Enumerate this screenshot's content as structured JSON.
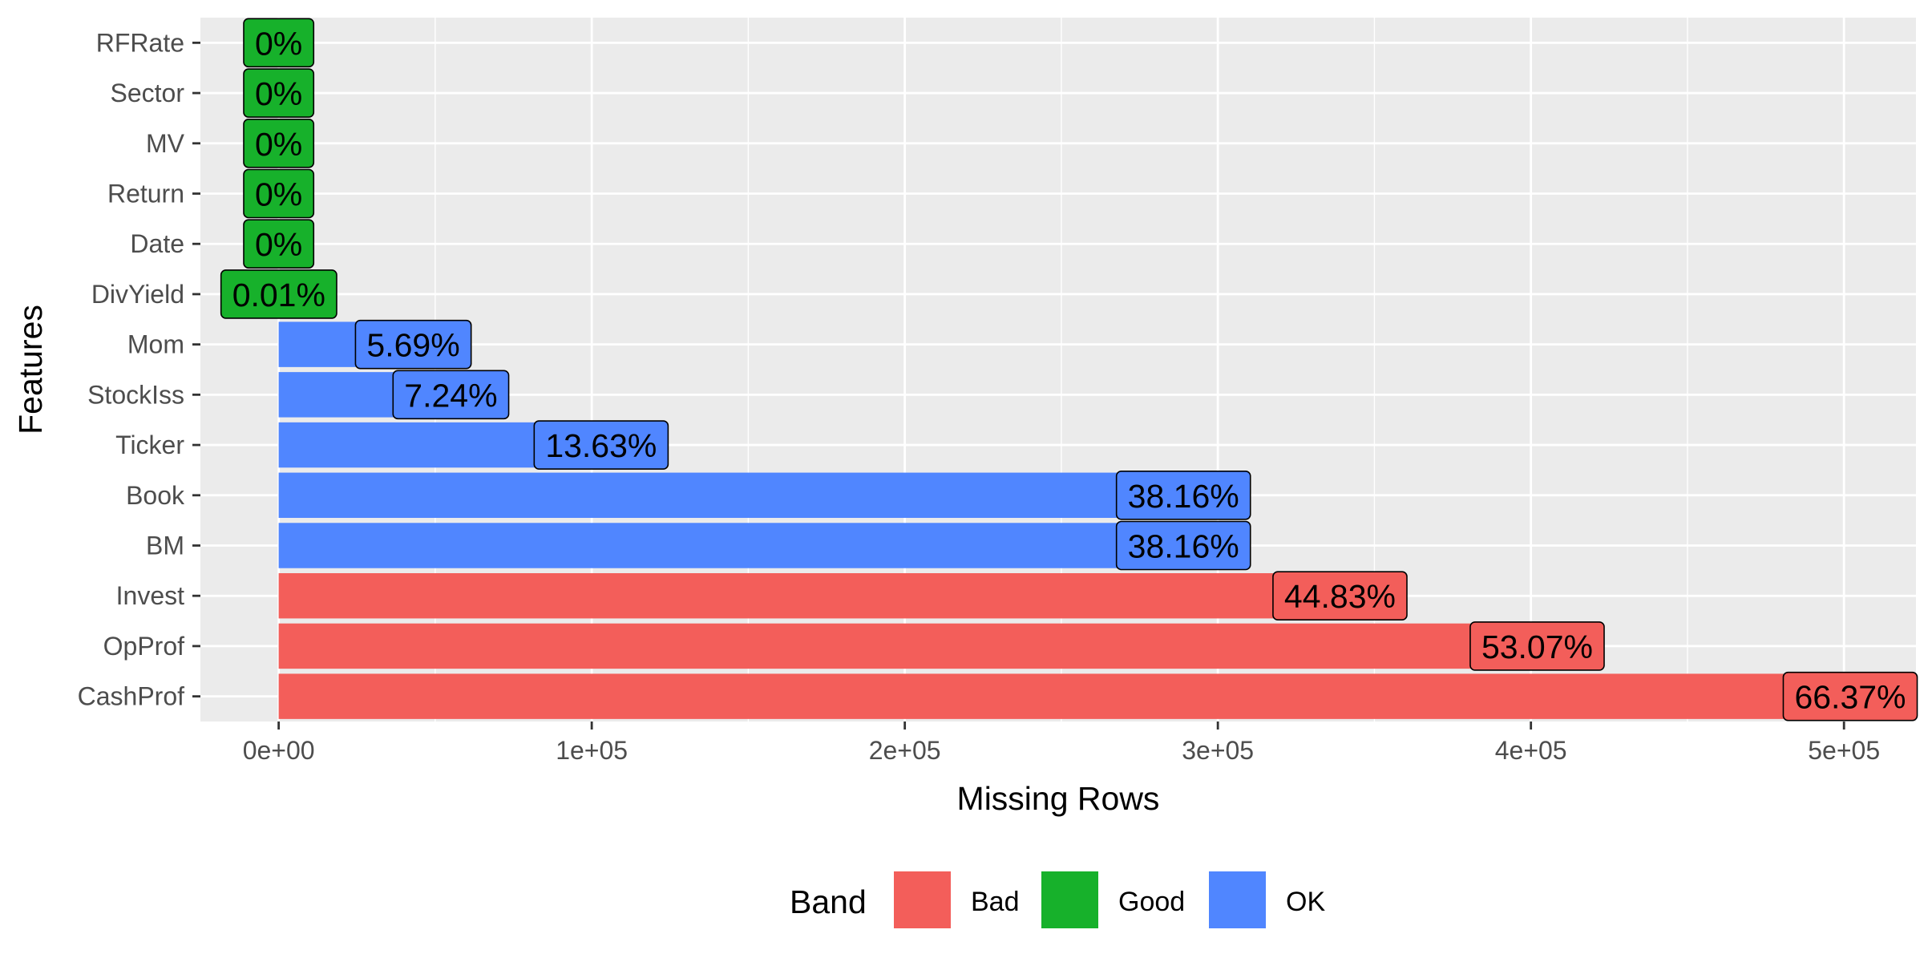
{
  "chart_data": {
    "type": "bar",
    "orientation": "horizontal",
    "title": "",
    "xlabel": "Missing Rows",
    "ylabel": "Features",
    "xlim": [
      -25000,
      523000
    ],
    "x_ticks": [
      0,
      100000,
      200000,
      300000,
      400000,
      500000
    ],
    "x_tick_labels": [
      "0e+00",
      "1e+05",
      "2e+05",
      "3e+05",
      "4e+05",
      "5e+05"
    ],
    "grid": true,
    "legend_position": "bottom",
    "legend": {
      "title": "Band",
      "entries": [
        {
          "name": "Bad",
          "color": "#F35E5A"
        },
        {
          "name": "Good",
          "color": "#17B12B"
        },
        {
          "name": "OK",
          "color": "#5086FF"
        }
      ]
    },
    "categories": [
      "RFRate",
      "Sector",
      "MV",
      "Return",
      "Date",
      "DivYield",
      "Mom",
      "StockIss",
      "Ticker",
      "Book",
      "BM",
      "Invest",
      "OpProf",
      "CashProf"
    ],
    "bars": [
      {
        "feature": "RFRate",
        "value": 0,
        "label": "0%",
        "band": "Good"
      },
      {
        "feature": "Sector",
        "value": 0,
        "label": "0%",
        "band": "Good"
      },
      {
        "feature": "MV",
        "value": 0,
        "label": "0%",
        "band": "Good"
      },
      {
        "feature": "Return",
        "value": 0,
        "label": "0%",
        "band": "Good"
      },
      {
        "feature": "Date",
        "value": 0,
        "label": "0%",
        "band": "Good"
      },
      {
        "feature": "DivYield",
        "value": 50,
        "label": "0.01%",
        "band": "Good"
      },
      {
        "feature": "Mom",
        "value": 43000,
        "label": "5.69%",
        "band": "OK"
      },
      {
        "feature": "StockIss",
        "value": 55000,
        "label": "7.24%",
        "band": "OK"
      },
      {
        "feature": "Ticker",
        "value": 103000,
        "label": "13.63%",
        "band": "OK"
      },
      {
        "feature": "Book",
        "value": 289000,
        "label": "38.16%",
        "band": "OK"
      },
      {
        "feature": "BM",
        "value": 289000,
        "label": "38.16%",
        "band": "OK"
      },
      {
        "feature": "Invest",
        "value": 339000,
        "label": "44.83%",
        "band": "Bad"
      },
      {
        "feature": "OpProf",
        "value": 402000,
        "label": "53.07%",
        "band": "Bad"
      },
      {
        "feature": "CashProf",
        "value": 502000,
        "label": "66.37%",
        "band": "Bad"
      }
    ]
  }
}
